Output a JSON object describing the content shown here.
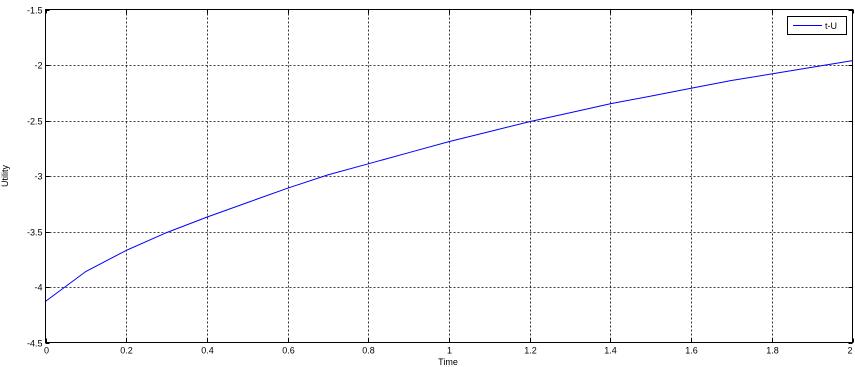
{
  "chart_data": {
    "type": "line",
    "title": "",
    "xlabel": "Time",
    "ylabel": "Utility",
    "xlim": [
      0,
      2
    ],
    "ylim": [
      -4.5,
      -1.5
    ],
    "xticks": [
      0,
      0.2,
      0.4,
      0.6,
      0.8,
      1,
      1.2,
      1.4,
      1.6,
      1.8,
      2
    ],
    "xtick_labels": [
      "0",
      "0.2",
      "0.4",
      "0.6",
      "0.8",
      "1",
      "1.2",
      "1.4",
      "1.6",
      "1.8",
      "2"
    ],
    "yticks": [
      -1.5,
      -2,
      -2.5,
      -3,
      -3.5,
      -4,
      -4.5
    ],
    "ytick_labels": [
      "-1.5",
      "-2",
      "-2.5",
      "-3",
      "-3.5",
      "-4",
      "-4.5"
    ],
    "grid": true,
    "legend_position": "top-right",
    "series": [
      {
        "name": "t-U",
        "color": "#0000ff",
        "x": [
          0,
          0.1,
          0.2,
          0.3,
          0.4,
          0.5,
          0.6,
          0.7,
          0.8,
          0.9,
          1.0,
          1.1,
          1.2,
          1.3,
          1.4,
          1.5,
          1.6,
          1.7,
          1.8,
          1.9,
          2.0
        ],
        "y": [
          -4.13,
          -3.86,
          -3.67,
          -3.51,
          -3.37,
          -3.24,
          -3.11,
          -2.99,
          -2.89,
          -2.79,
          -2.69,
          -2.6,
          -2.51,
          -2.43,
          -2.35,
          -2.28,
          -2.21,
          -2.14,
          -2.08,
          -2.02,
          -1.96
        ]
      }
    ]
  }
}
